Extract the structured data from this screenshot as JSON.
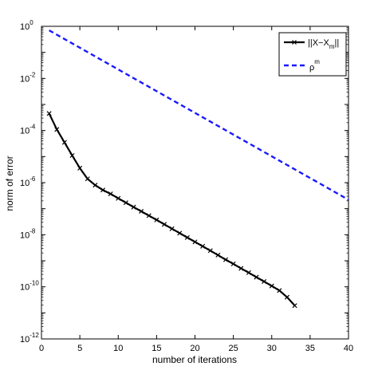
{
  "chart_data": {
    "type": "line",
    "xlabel": "number of iterations",
    "ylabel": "norm of error",
    "xlim": [
      0,
      40
    ],
    "ylim": [
      1e-12,
      1
    ],
    "yscale": "log",
    "x_ticks": [
      0,
      5,
      10,
      15,
      20,
      25,
      30,
      35,
      40
    ],
    "y_tick_exponents": [
      0,
      -2,
      -4,
      -6,
      -8,
      -10,
      -12
    ],
    "y_tick_base": "10",
    "grid": false,
    "legend_position": "top-right",
    "legend": {
      "series1_base": "||X−X",
      "series1_sub": "m",
      "series1_close": "||",
      "series2_base": "ρ",
      "series2_sup": "m"
    },
    "series": [
      {
        "id": "error",
        "style": "solid-marker",
        "color": "#000000",
        "x": [
          1,
          2,
          3,
          4,
          5,
          6,
          7,
          8,
          9,
          10,
          11,
          12,
          13,
          14,
          15,
          16,
          17,
          18,
          19,
          20,
          21,
          22,
          23,
          24,
          25,
          26,
          27,
          28,
          29,
          30,
          31,
          32,
          33
        ],
        "y": [
          0.00045,
          0.00011,
          3.5e-05,
          1.1e-05,
          3.6e-06,
          1.4e-06,
          8e-07,
          5.2e-07,
          3.7e-07,
          2.5e-07,
          1.7e-07,
          1.15e-07,
          7.9e-08,
          5.4e-08,
          3.7e-08,
          2.5e-08,
          1.7e-08,
          1.15e-08,
          7.8e-09,
          5.3e-09,
          3.6e-09,
          2.45e-09,
          1.65e-09,
          1.1e-09,
          7.6e-10,
          5.1e-10,
          3.5e-10,
          2.35e-10,
          1.6e-10,
          1.08e-10,
          7.2e-11,
          4e-11,
          1.9e-11
        ]
      },
      {
        "id": "rho",
        "style": "dashed",
        "color": "#1a1aff",
        "x": [
          1,
          40
        ],
        "y": [
          0.7,
          2.2e-07
        ]
      }
    ]
  }
}
